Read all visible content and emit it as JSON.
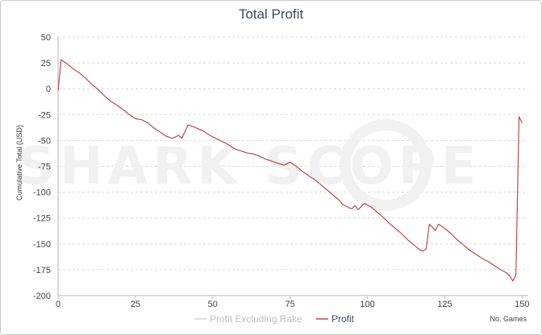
{
  "chart_data": {
    "type": "line",
    "title": "Total Profit",
    "xlabel": "No. Games",
    "ylabel": "Cumulative Total (USD)",
    "xlim": [
      0,
      152
    ],
    "ylim": [
      -200,
      50
    ],
    "x_ticks": [
      "0",
      "25",
      "50",
      "75",
      "100",
      "125",
      "150"
    ],
    "y_ticks": [
      "50",
      "25",
      "0",
      "-25",
      "-50",
      "-75",
      "-100",
      "-125",
      "-150",
      "-175",
      "-200"
    ],
    "grid": "horizontal dashed",
    "watermark": "SHARK SCOPE",
    "legend_position": "bottom-center",
    "series": [
      {
        "name": "Profit Excluding Rake",
        "color": "#d6d6d6",
        "x": [],
        "y": []
      },
      {
        "name": "Profit",
        "color": "#b94a4a",
        "x": [
          0,
          1,
          3,
          5,
          7,
          9,
          11,
          13,
          15,
          17,
          19,
          21,
          23,
          25,
          27,
          29,
          31,
          33,
          35,
          37,
          39,
          40,
          42,
          43,
          44,
          47,
          49,
          51,
          53,
          55,
          57,
          59,
          61,
          63,
          65,
          67,
          69,
          71,
          73,
          75,
          77,
          79,
          81,
          83,
          85,
          87,
          89,
          91,
          92,
          94,
          95,
          96,
          97,
          99,
          101,
          103,
          105,
          107,
          109,
          111,
          113,
          115,
          117,
          118,
          119,
          120,
          122,
          123,
          125,
          127,
          129,
          131,
          133,
          135,
          137,
          139,
          141,
          143,
          145,
          146,
          147,
          148,
          149,
          150
        ],
        "y": [
          -2,
          28,
          24,
          19,
          15,
          10,
          4,
          -1,
          -7,
          -12,
          -16,
          -20,
          -25,
          -29,
          -30,
          -33,
          -38,
          -42,
          -46,
          -48,
          -45,
          -48,
          -35,
          -36,
          -37,
          -41,
          -45,
          -48,
          -51,
          -54,
          -58,
          -60,
          -62,
          -63,
          -65,
          -68,
          -70,
          -72,
          -74,
          -71,
          -75,
          -80,
          -84,
          -88,
          -93,
          -98,
          -103,
          -108,
          -112,
          -115,
          -116,
          -113,
          -117,
          -111,
          -114,
          -119,
          -124,
          -130,
          -135,
          -140,
          -146,
          -151,
          -156,
          -157,
          -155,
          -131,
          -137,
          -131,
          -135,
          -140,
          -146,
          -151,
          -156,
          -160,
          -164,
          -167,
          -171,
          -175,
          -178,
          -181,
          -186,
          -180,
          -27,
          -33
        ]
      }
    ]
  }
}
